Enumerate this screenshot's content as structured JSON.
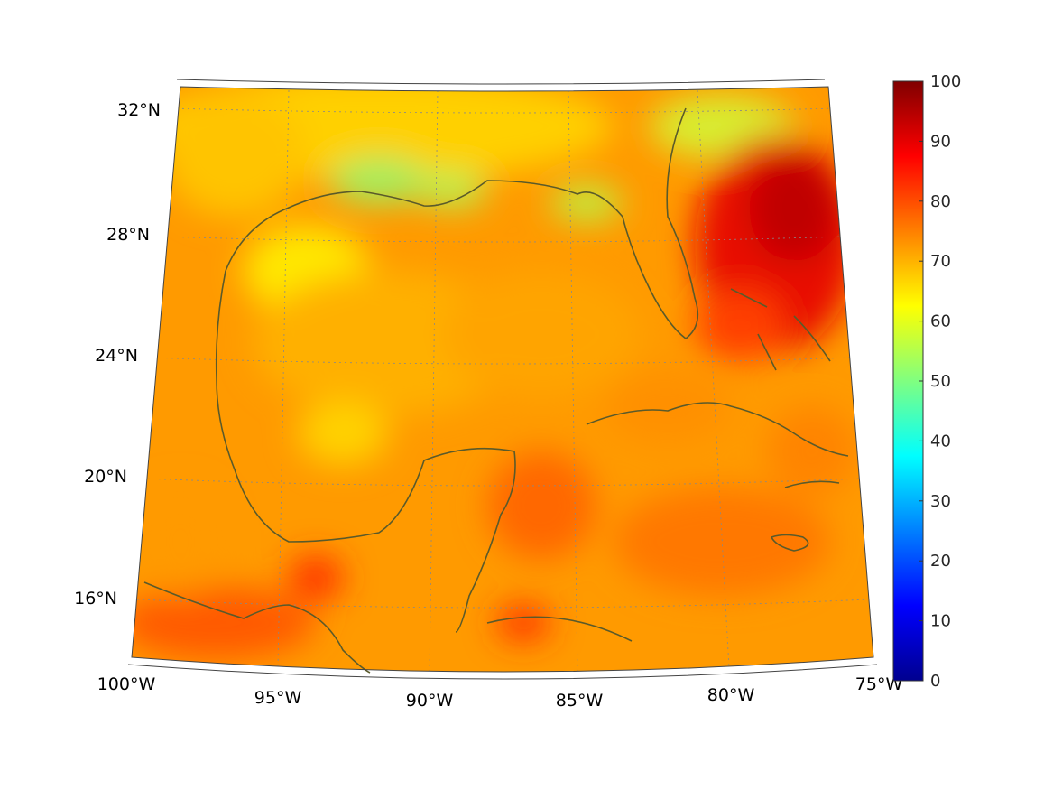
{
  "map": {
    "projection": "conic",
    "lon_range": [
      -100,
      -75
    ],
    "lat_range": [
      14,
      33
    ],
    "lon_ticks": [
      "100°W",
      "95°W",
      "90°W",
      "85°W",
      "80°W",
      "75°W"
    ],
    "lat_ticks": [
      "16°N",
      "20°N",
      "24°N",
      "28°N",
      "32°N"
    ],
    "grid": true,
    "coastline_color": "#5a5a2a"
  },
  "colorbar": {
    "colormap": "jet",
    "min": 0,
    "max": 100,
    "ticks": [
      "0",
      "10",
      "20",
      "30",
      "40",
      "50",
      "60",
      "70",
      "80",
      "90",
      "100"
    ]
  },
  "field_summary": [
    {
      "region": "Gulf of Mexico interior",
      "value": 72
    },
    {
      "region": "northern Gulf coast (Louisiana / Florida panhandle)",
      "value": 55
    },
    {
      "region": "western Atlantic east of Florida / Bahamas",
      "value": 92
    },
    {
      "region": "Caribbean Sea",
      "value": 78
    },
    {
      "region": "southwestern corner (southern Mexico / Guatemala)",
      "value": 80
    }
  ]
}
